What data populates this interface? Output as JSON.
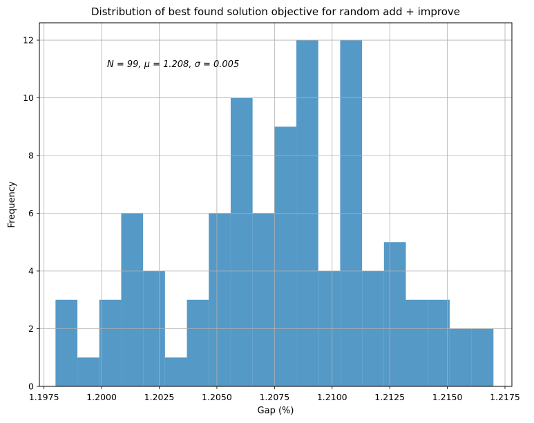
{
  "chart_data": {
    "type": "bar",
    "title": "Distribution of best found solution objective for random add + improve",
    "xlabel": "Gap (%)",
    "ylabel": "Frequency",
    "annotation": "N = 99, μ = 1.208,  σ = 0.005",
    "bar_color": "#5599c7",
    "grid": true,
    "xlim": [
      1.1973,
      1.2178
    ],
    "ylim": [
      0,
      12.6
    ],
    "xticks": [
      1.1975,
      1.2,
      1.2025,
      1.205,
      1.2075,
      1.21,
      1.2125,
      1.215,
      1.2175
    ],
    "xtick_labels": [
      "1.1975",
      "1.2000",
      "1.2025",
      "1.2050",
      "1.2075",
      "1.2100",
      "1.2125",
      "1.2150",
      "1.2175"
    ],
    "yticks": [
      0,
      2,
      4,
      6,
      8,
      10,
      12
    ],
    "ytick_labels": [
      "0",
      "2",
      "4",
      "6",
      "8",
      "10",
      "12"
    ],
    "bins": {
      "start": 1.198,
      "end": 1.217,
      "counts": [
        3,
        1,
        3,
        6,
        4,
        1,
        3,
        6,
        10,
        6,
        9,
        12,
        4,
        12,
        4,
        5,
        3,
        3,
        2,
        2
      ]
    }
  }
}
